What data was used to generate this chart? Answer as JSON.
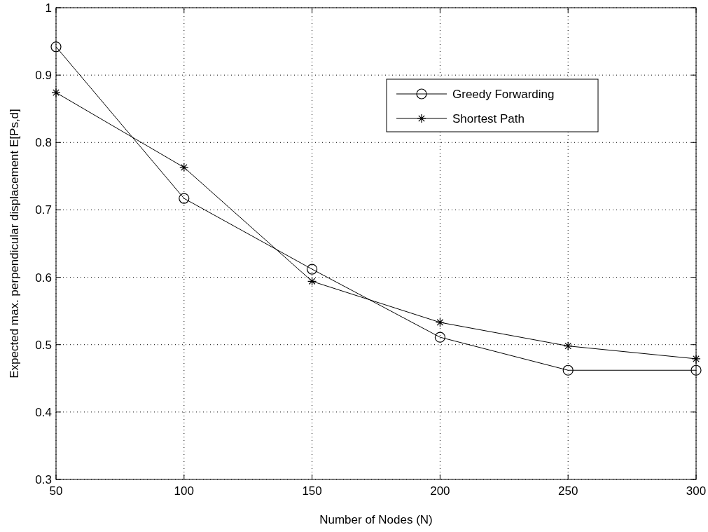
{
  "chart_data": {
    "type": "line",
    "xlabel": "Number of Nodes (N)",
    "ylabel": "Expected max. perpendicular displacement E[Ps,d]",
    "x": [
      50,
      100,
      150,
      200,
      250,
      300
    ],
    "series": [
      {
        "name": "Greedy Forwarding",
        "color": "#000000",
        "marker": "circle",
        "values": [
          0.942,
          0.717,
          0.612,
          0.511,
          0.462,
          0.462
        ]
      },
      {
        "name": "Shortest Path",
        "color": "#000000",
        "marker": "cross",
        "values": [
          0.874,
          0.763,
          0.594,
          0.533,
          0.498,
          0.479
        ]
      }
    ],
    "xlim": [
      50,
      300
    ],
    "xticks": [
      50,
      100,
      150,
      200,
      250,
      300
    ],
    "ylim": [
      0.3,
      1
    ],
    "yticks": [
      0.3,
      0.4,
      0.5,
      0.6,
      0.7,
      0.8,
      0.9,
      1
    ],
    "grid": true,
    "legend": "top right",
    "line_style": "solid"
  }
}
